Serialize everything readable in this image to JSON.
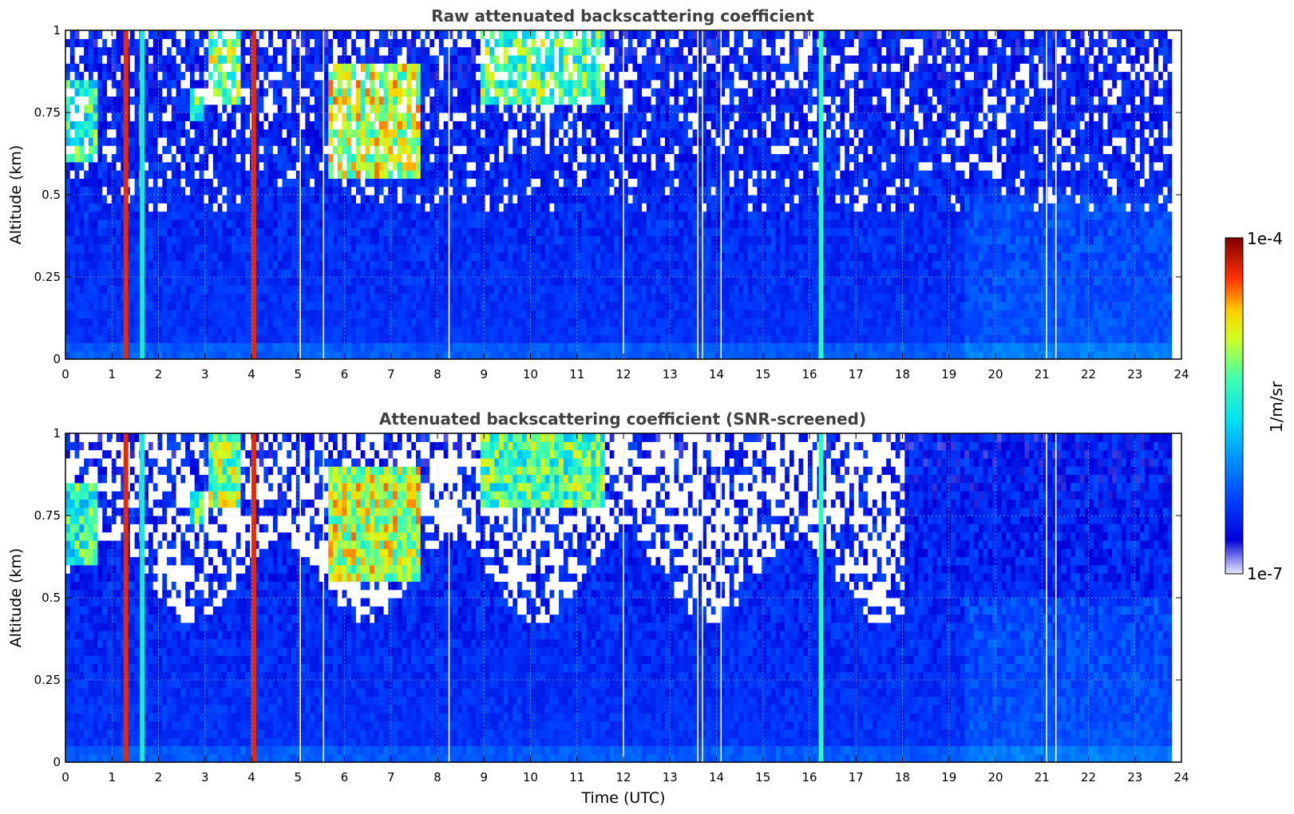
{
  "chart_data": [
    {
      "type": "heatmap",
      "title": "Raw attenuated backscattering coefficient",
      "xlabel": "",
      "ylabel": "Altitude (km)",
      "xlim": [
        0,
        24
      ],
      "ylim": [
        0,
        1
      ],
      "xticks": [
        "0",
        "1",
        "2",
        "3",
        "4",
        "5",
        "6",
        "7",
        "8",
        "9",
        "10",
        "11",
        "12",
        "13",
        "14",
        "15",
        "16",
        "17",
        "18",
        "19",
        "20",
        "21",
        "22",
        "23",
        "24"
      ],
      "yticks": [
        "0",
        "0.25",
        "0.5",
        "0.75",
        "1"
      ],
      "grid": true,
      "screened": false,
      "x_data_end": 23.8,
      "features": {
        "vertical_bands": [
          {
            "time": 1.3,
            "level": 0.9
          },
          {
            "time": 1.65,
            "level": 0.5
          },
          {
            "time": 4.05,
            "level": 0.9
          },
          {
            "time": 16.25,
            "level": 0.55
          }
        ],
        "gaps": [
          5.05,
          5.55,
          8.25,
          12.0,
          13.6,
          13.7,
          14.1,
          21.1,
          21.3
        ],
        "clouds": [
          {
            "t0": 5.7,
            "t1": 7.6,
            "z0": 0.55,
            "z1": 0.9,
            "level": 0.85
          },
          {
            "t0": 3.1,
            "t1": 3.8,
            "z0": 0.78,
            "z1": 1.0,
            "level": 0.8
          },
          {
            "t0": 8.9,
            "t1": 11.6,
            "z0": 0.78,
            "z1": 1.0,
            "level": 0.75
          },
          {
            "t0": 0.0,
            "t1": 0.7,
            "z0": 0.6,
            "z1": 0.85,
            "level": 0.7
          },
          {
            "t0": 2.7,
            "t1": 2.95,
            "z0": 0.72,
            "z1": 0.82,
            "level": 0.75
          }
        ]
      }
    },
    {
      "type": "heatmap",
      "title": "Attenuated backscattering coefficient (SNR-screened)",
      "xlabel": "Time (UTC)",
      "ylabel": "Altitude (km)",
      "xlim": [
        0,
        24
      ],
      "ylim": [
        0,
        1
      ],
      "xticks": [
        "0",
        "1",
        "2",
        "3",
        "4",
        "5",
        "6",
        "7",
        "8",
        "9",
        "10",
        "11",
        "12",
        "13",
        "14",
        "15",
        "16",
        "17",
        "18",
        "19",
        "20",
        "21",
        "22",
        "23",
        "24"
      ],
      "yticks": [
        "0",
        "0.25",
        "0.5",
        "0.75",
        "1"
      ],
      "grid": true,
      "screened": true,
      "x_data_end": 23.8
    }
  ],
  "colorbar": {
    "colormap": "jet",
    "min_label": "1e-7",
    "max_label": "1e-4",
    "label": "1/m/sr",
    "scale": "log"
  }
}
